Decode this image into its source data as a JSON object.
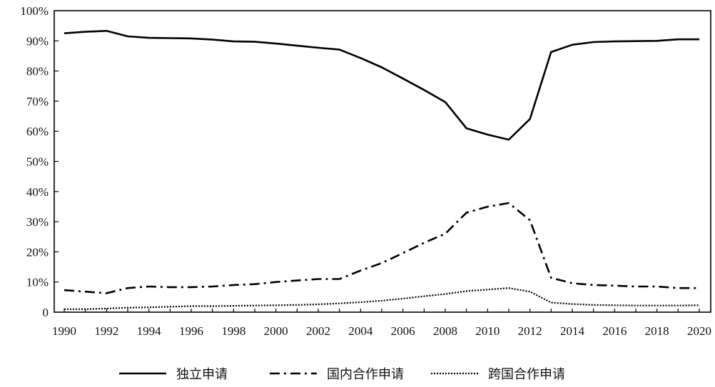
{
  "chart_data": {
    "type": "line",
    "title": "",
    "xlabel": "",
    "ylabel": "",
    "xlim": [
      1990,
      2020
    ],
    "ylim": [
      0,
      100
    ],
    "grid": false,
    "legend_position": "bottom",
    "x": [
      1990,
      1991,
      1992,
      1993,
      1994,
      1995,
      1996,
      1997,
      1998,
      1999,
      2000,
      2001,
      2002,
      2003,
      2004,
      2005,
      2006,
      2007,
      2008,
      2009,
      2010,
      2011,
      2012,
      2013,
      2014,
      2015,
      2016,
      2017,
      2018,
      2019,
      2020
    ],
    "x_tick_labels": [
      "1990",
      "1992",
      "1994",
      "1996",
      "1998",
      "2000",
      "2002",
      "2004",
      "2006",
      "2008",
      "2010",
      "2012",
      "2014",
      "2016",
      "2018",
      "2020"
    ],
    "y_tick_labels": [
      "0",
      "10%",
      "20%",
      "30%",
      "40%",
      "50%",
      "60%",
      "70%",
      "80%",
      "90%",
      "100%"
    ],
    "series": [
      {
        "name": "独立申请",
        "style": "solid",
        "values": [
          92.5,
          93.0,
          93.3,
          91.5,
          91.0,
          90.9,
          90.8,
          90.4,
          89.8,
          89.7,
          89.1,
          88.4,
          87.7,
          87.1,
          84.3,
          81.2,
          77.5,
          73.7,
          69.7,
          61.0,
          58.9,
          57.2,
          64.1,
          86.3,
          88.7,
          89.6,
          89.8,
          89.9,
          90.0,
          90.5,
          90.5
        ]
      },
      {
        "name": "国内合作申请",
        "style": "dashdot",
        "values": [
          7.3,
          6.8,
          6.3,
          8.0,
          8.5,
          8.3,
          8.3,
          8.5,
          9.0,
          9.3,
          10.0,
          10.5,
          11.0,
          11.0,
          13.8,
          16.3,
          19.6,
          23.0,
          26.0,
          33.0,
          35.0,
          36.2,
          30.5,
          11.4,
          9.6,
          9.0,
          8.8,
          8.5,
          8.5,
          8.0,
          8.0
        ]
      },
      {
        "name": "跨国合作申请",
        "style": "dotted",
        "values": [
          1.0,
          1.0,
          1.2,
          1.5,
          1.6,
          1.8,
          2.0,
          2.0,
          2.1,
          2.2,
          2.3,
          2.4,
          2.6,
          2.9,
          3.3,
          3.8,
          4.5,
          5.3,
          6.0,
          7.0,
          7.5,
          8.0,
          6.8,
          3.2,
          2.7,
          2.4,
          2.3,
          2.2,
          2.2,
          2.2,
          2.3
        ]
      }
    ]
  }
}
